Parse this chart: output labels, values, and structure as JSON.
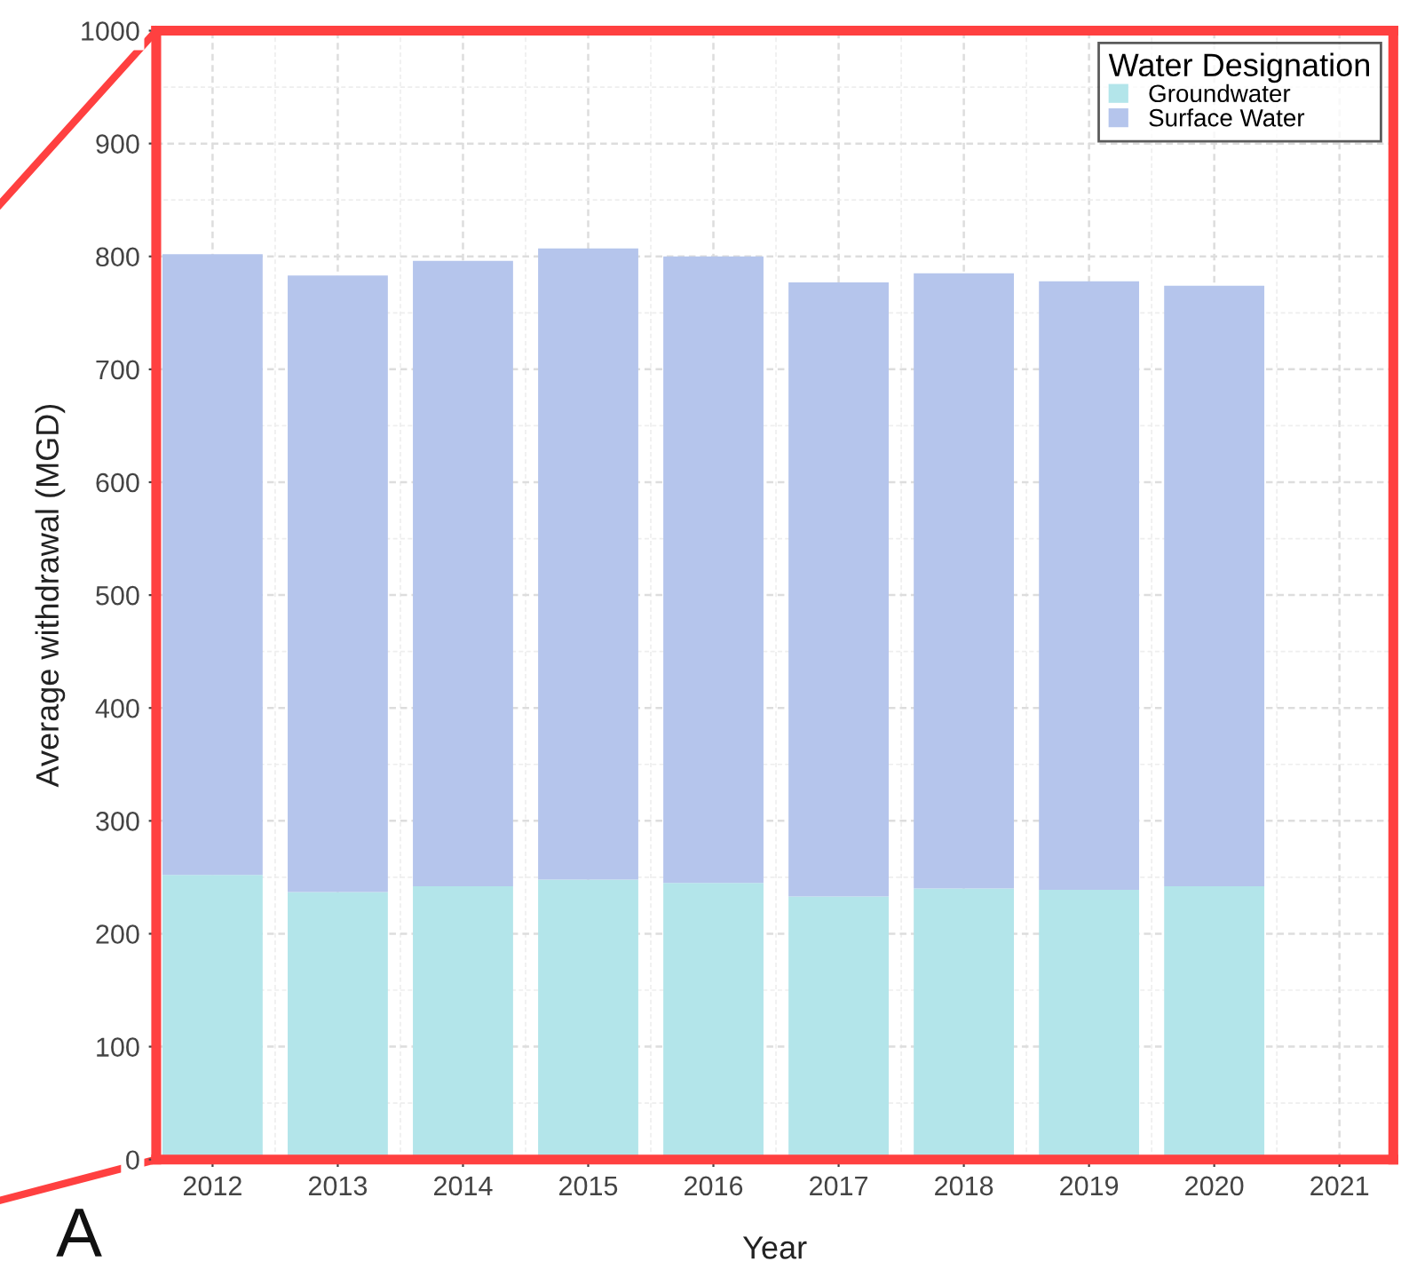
{
  "chart_data": {
    "type": "bar",
    "stacked": true,
    "xlabel": "Year",
    "ylabel": "Average withdrawal (MGD)",
    "legend_title": "Water Designation",
    "legend": "top right",
    "grid": true,
    "categories": [
      "2012",
      "2013",
      "2014",
      "2015",
      "2016",
      "2017",
      "2018",
      "2019",
      "2020",
      "2021"
    ],
    "series": [
      {
        "name": "Groundwater",
        "color": "#b3e5ea",
        "values": [
          252,
          237,
          242,
          248,
          245,
          233,
          240,
          239,
          242,
          null
        ]
      },
      {
        "name": "Surface Water",
        "color": "#b5c5ec",
        "values": [
          550,
          546,
          554,
          559,
          555,
          544,
          545,
          539,
          532,
          null
        ]
      }
    ],
    "ylim": [
      0,
      1000
    ],
    "yticks": [
      0,
      100,
      200,
      300,
      400,
      500,
      600,
      700,
      800,
      900,
      1000
    ],
    "annotations": [
      "A"
    ]
  }
}
